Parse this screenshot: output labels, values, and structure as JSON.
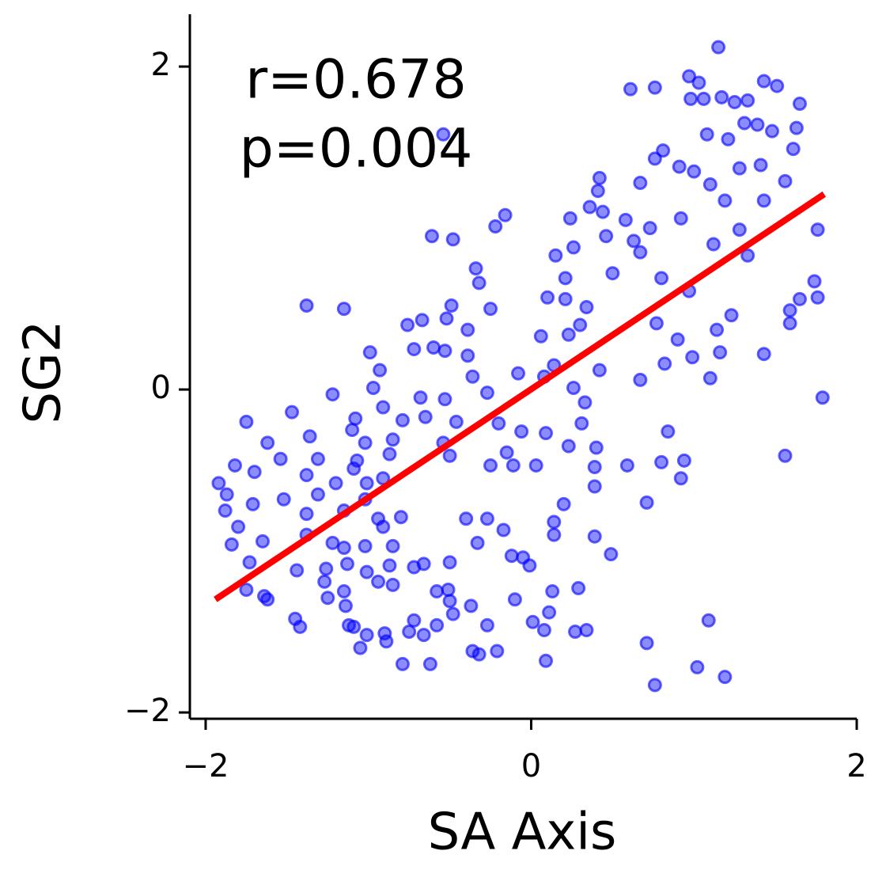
{
  "chart_data": {
    "type": "scatter",
    "xlabel": "SA Axis",
    "ylabel": "SG2",
    "annotations": [
      "r=0.678",
      "p=0.004"
    ],
    "xlim": [
      -2.097,
      2.0
    ],
    "ylim": [
      -2.039,
      2.324
    ],
    "xticks": [
      {
        "value": -2,
        "label": "−2"
      },
      0,
      2
    ],
    "yticks": [
      {
        "value": -2,
        "label": "−2"
      },
      0,
      2
    ],
    "grid": false,
    "series": [
      {
        "color": "blue",
        "x": [
          1.15,
          0.61,
          0.76,
          0.97,
          1.03,
          1.43,
          1.51,
          1.17,
          0.98,
          1.06,
          1.25,
          1.33,
          1.65,
          1.31,
          1.39,
          1.48,
          1.63,
          1.08,
          1.21,
          -0.54,
          1.61,
          0.81,
          0.76,
          0.91,
          1.28,
          1.41,
          1.56,
          0.42,
          0.67,
          1.0,
          0.41,
          1.1,
          1.19,
          1.43,
          0.36,
          0.44,
          0.24,
          0.58,
          -0.16,
          -0.22,
          0.73,
          0.92,
          1.28,
          1.76,
          -0.61,
          -0.48,
          0.46,
          0.63,
          0.26,
          0.15,
          0.67,
          1.12,
          1.33,
          0.5,
          0.21,
          0.8,
          -0.34,
          -0.32,
          1.74,
          0.1,
          0.97,
          0.21,
          1.65,
          1.76,
          -1.38,
          -1.15,
          -0.49,
          -0.25,
          0.34,
          1.23,
          1.59,
          -0.52,
          -0.76,
          -0.67,
          -0.39,
          0.3,
          1.14,
          1.59,
          0.77,
          0.06,
          0.23,
          -0.72,
          -0.6,
          -0.53,
          -0.99,
          -0.39,
          1.16,
          1.43,
          0.9,
          0.99,
          0.82,
          0.14,
          0.42,
          -0.93,
          -0.36,
          -0.08,
          0.08,
          1.1,
          0.67,
          1.79,
          -0.97,
          -1.22,
          -0.68,
          -0.53,
          -0.27,
          0.26,
          0.33,
          -0.91,
          -1.47,
          -1.75,
          -1.08,
          -0.79,
          -0.65,
          -0.46,
          -0.2,
          0.31,
          -1.1,
          -1.36,
          -1.62,
          -1.02,
          -0.85,
          -0.54,
          -0.06,
          0.09,
          0.23,
          0.84,
          -1.54,
          -1.31,
          -1.07,
          -0.87,
          -0.5,
          -0.15,
          0.4,
          1.56,
          -1.82,
          -1.09,
          -0.25,
          -0.11,
          0.03,
          0.39,
          0.59,
          0.8,
          0.94,
          -1.7,
          -1.38,
          -0.91,
          0.92,
          -1.92,
          -1.2,
          -1.01,
          0.39,
          -1.87,
          -1.31,
          -1.02,
          -1.52,
          -1.71,
          0.71,
          0.2,
          -1.88,
          -1.15,
          -1.38,
          -0.94,
          -0.8,
          -0.4,
          -0.27,
          0.14,
          -1.8,
          -0.91,
          -0.17,
          0.14,
          -1.38,
          -1.65,
          -1.22,
          0.39,
          -1.84,
          -1.15,
          -1.02,
          -0.85,
          -0.33,
          -0.12,
          -0.05,
          0.49,
          -1.73,
          -1.13,
          -0.5,
          -0.87,
          -0.72,
          -0.66,
          -0.01,
          -1.44,
          -1.26,
          -1.01,
          -1.27,
          -0.94,
          -0.85,
          -0.51,
          0.13,
          0.29,
          -1.75,
          -1.64,
          -1.15,
          -1.25,
          -0.58,
          -0.1,
          -1.62,
          -0.5,
          -0.37,
          -1.14,
          -0.48,
          0.11,
          -1.45,
          -0.72,
          -0.58,
          0.01,
          1.09,
          -1.42,
          -1.12,
          -1.09,
          -0.27,
          0.08,
          -0.75,
          -0.9,
          -1.01,
          0.27,
          0.34,
          -0.66,
          -0.89,
          0.71,
          -1.05,
          -0.36,
          -0.32,
          -0.21,
          0.09,
          -0.79,
          -0.62,
          1.02,
          1.19,
          0.76
        ],
        "values": [
          2.12,
          1.86,
          1.87,
          1.94,
          1.9,
          1.91,
          1.88,
          1.81,
          1.8,
          1.8,
          1.78,
          1.79,
          1.77,
          1.65,
          1.64,
          1.6,
          1.62,
          1.58,
          1.55,
          1.58,
          1.49,
          1.48,
          1.43,
          1.38,
          1.37,
          1.39,
          1.29,
          1.31,
          1.28,
          1.35,
          1.23,
          1.27,
          1.17,
          1.17,
          1.13,
          1.1,
          1.06,
          1.05,
          1.08,
          1.01,
          1.0,
          1.06,
          0.99,
          0.99,
          0.95,
          0.93,
          0.95,
          0.92,
          0.88,
          0.83,
          0.85,
          0.9,
          0.83,
          0.72,
          0.69,
          0.69,
          0.75,
          0.66,
          0.67,
          0.57,
          0.61,
          0.56,
          0.56,
          0.57,
          0.52,
          0.5,
          0.52,
          0.5,
          0.51,
          0.46,
          0.49,
          0.44,
          0.4,
          0.43,
          0.37,
          0.4,
          0.37,
          0.41,
          0.41,
          0.33,
          0.34,
          0.25,
          0.26,
          0.24,
          0.23,
          0.21,
          0.23,
          0.22,
          0.31,
          0.2,
          0.16,
          0.15,
          0.12,
          0.12,
          0.08,
          0.1,
          0.08,
          0.07,
          0.06,
          -0.05,
          0.01,
          -0.03,
          -0.05,
          -0.06,
          -0.02,
          0.01,
          -0.08,
          -0.11,
          -0.14,
          -0.2,
          -0.18,
          -0.19,
          -0.17,
          -0.2,
          -0.21,
          -0.21,
          -0.25,
          -0.29,
          -0.33,
          -0.33,
          -0.31,
          -0.33,
          -0.26,
          -0.27,
          -0.35,
          -0.26,
          -0.43,
          -0.43,
          -0.44,
          -0.4,
          -0.41,
          -0.39,
          -0.36,
          -0.41,
          -0.47,
          -0.49,
          -0.47,
          -0.47,
          -0.47,
          -0.48,
          -0.47,
          -0.45,
          -0.44,
          -0.51,
          -0.53,
          -0.55,
          -0.55,
          -0.58,
          -0.58,
          -0.58,
          -0.6,
          -0.65,
          -0.65,
          -0.68,
          -0.68,
          -0.71,
          -0.7,
          -0.71,
          -0.75,
          -0.75,
          -0.77,
          -0.8,
          -0.79,
          -0.8,
          -0.8,
          -0.82,
          -0.85,
          -0.85,
          -0.87,
          -0.9,
          -0.9,
          -0.94,
          -0.95,
          -0.91,
          -0.96,
          -0.98,
          -0.97,
          -0.97,
          -0.95,
          -1.03,
          -1.04,
          -1.02,
          -1.07,
          -1.08,
          -1.07,
          -1.09,
          -1.1,
          -1.08,
          -1.09,
          -1.12,
          -1.11,
          -1.13,
          -1.19,
          -1.19,
          -1.21,
          -1.24,
          -1.25,
          -1.23,
          -1.24,
          -1.28,
          -1.25,
          -1.29,
          -1.25,
          -1.3,
          -1.3,
          -1.31,
          -1.34,
          -1.34,
          -1.39,
          -1.38,
          -1.42,
          -1.43,
          -1.46,
          -1.44,
          -1.43,
          -1.47,
          -1.46,
          -1.47,
          -1.46,
          -1.49,
          -1.5,
          -1.51,
          -1.52,
          -1.5,
          -1.49,
          -1.52,
          -1.56,
          -1.57,
          -1.6,
          -1.62,
          -1.64,
          -1.62,
          -1.68,
          -1.7,
          -1.7,
          -1.72,
          -1.78,
          -1.83
        ]
      }
    ],
    "fit_line": {
      "color": "red",
      "x": [
        -1.94,
        1.8
      ],
      "y": [
        -1.3,
        1.21
      ]
    }
  }
}
